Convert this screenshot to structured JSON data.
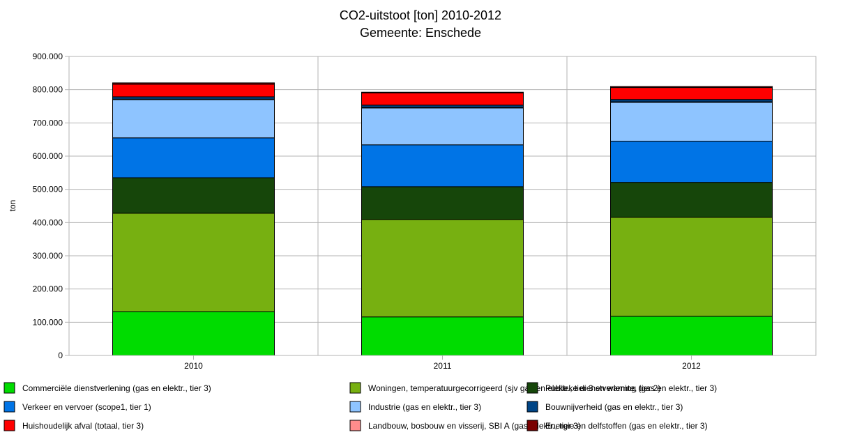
{
  "chart_data": {
    "type": "bar",
    "stacked": true,
    "title": "CO2-uitstoot [ton] 2010-2012",
    "subtitle": "Gemeente: Enschede",
    "xlabel": "",
    "ylabel": "ton",
    "ylim": [
      0,
      900000
    ],
    "yticks": [
      "0",
      "100.000",
      "200.000",
      "300.000",
      "400.000",
      "500.000",
      "600.000",
      "700.000",
      "800.000",
      "900.000"
    ],
    "grid": true,
    "legend_position": "bottom",
    "categories": [
      "2010",
      "2011",
      "2012"
    ],
    "series": [
      {
        "name": "Commerciële dienstverlening (gas en elektr., tier 3)",
        "color": "#00dc00",
        "values": [
          132000,
          116000,
          118000
        ]
      },
      {
        "name": "Woningen, temperatuurgecorrigeerd (sjv gas en elektr., tier 3 en warmte, tier 2)",
        "color": "#77b011",
        "values": [
          296000,
          293000,
          298000
        ]
      },
      {
        "name": "Publieke dienstverlening (gas en elektr., tier 3)",
        "color": "#16460a",
        "values": [
          107000,
          99000,
          105000
        ]
      },
      {
        "name": "Verkeer en vervoer (scope1, tier 1)",
        "color": "#0074e6",
        "values": [
          120000,
          126000,
          124000
        ]
      },
      {
        "name": "Industrie (gas en elektr., tier 3)",
        "color": "#8ec4ff",
        "values": [
          115000,
          111000,
          117000
        ]
      },
      {
        "name": "Landbouw, bosbouw en visserij, SBI A (gas, elektr., tier 3)",
        "color": "#ff8c8c",
        "values": [
          1500,
          1500,
          1500
        ]
      },
      {
        "name": "Bouwnijverheid (gas en elektr., tier 3)",
        "color": "#004586",
        "values": [
          7000,
          7000,
          7000
        ]
      },
      {
        "name": "Huishoudelijk afval (totaal, tier 3)",
        "color": "#ff0000",
        "values": [
          38000,
          37000,
          36000
        ]
      },
      {
        "name": "Energie en delfstoffen (gas en elektr., tier 3)",
        "color": "#7a0000",
        "values": [
          4000,
          2000,
          3000
        ]
      }
    ]
  },
  "legend_order": [
    0,
    3,
    7,
    1,
    4,
    5,
    2,
    6,
    8
  ]
}
